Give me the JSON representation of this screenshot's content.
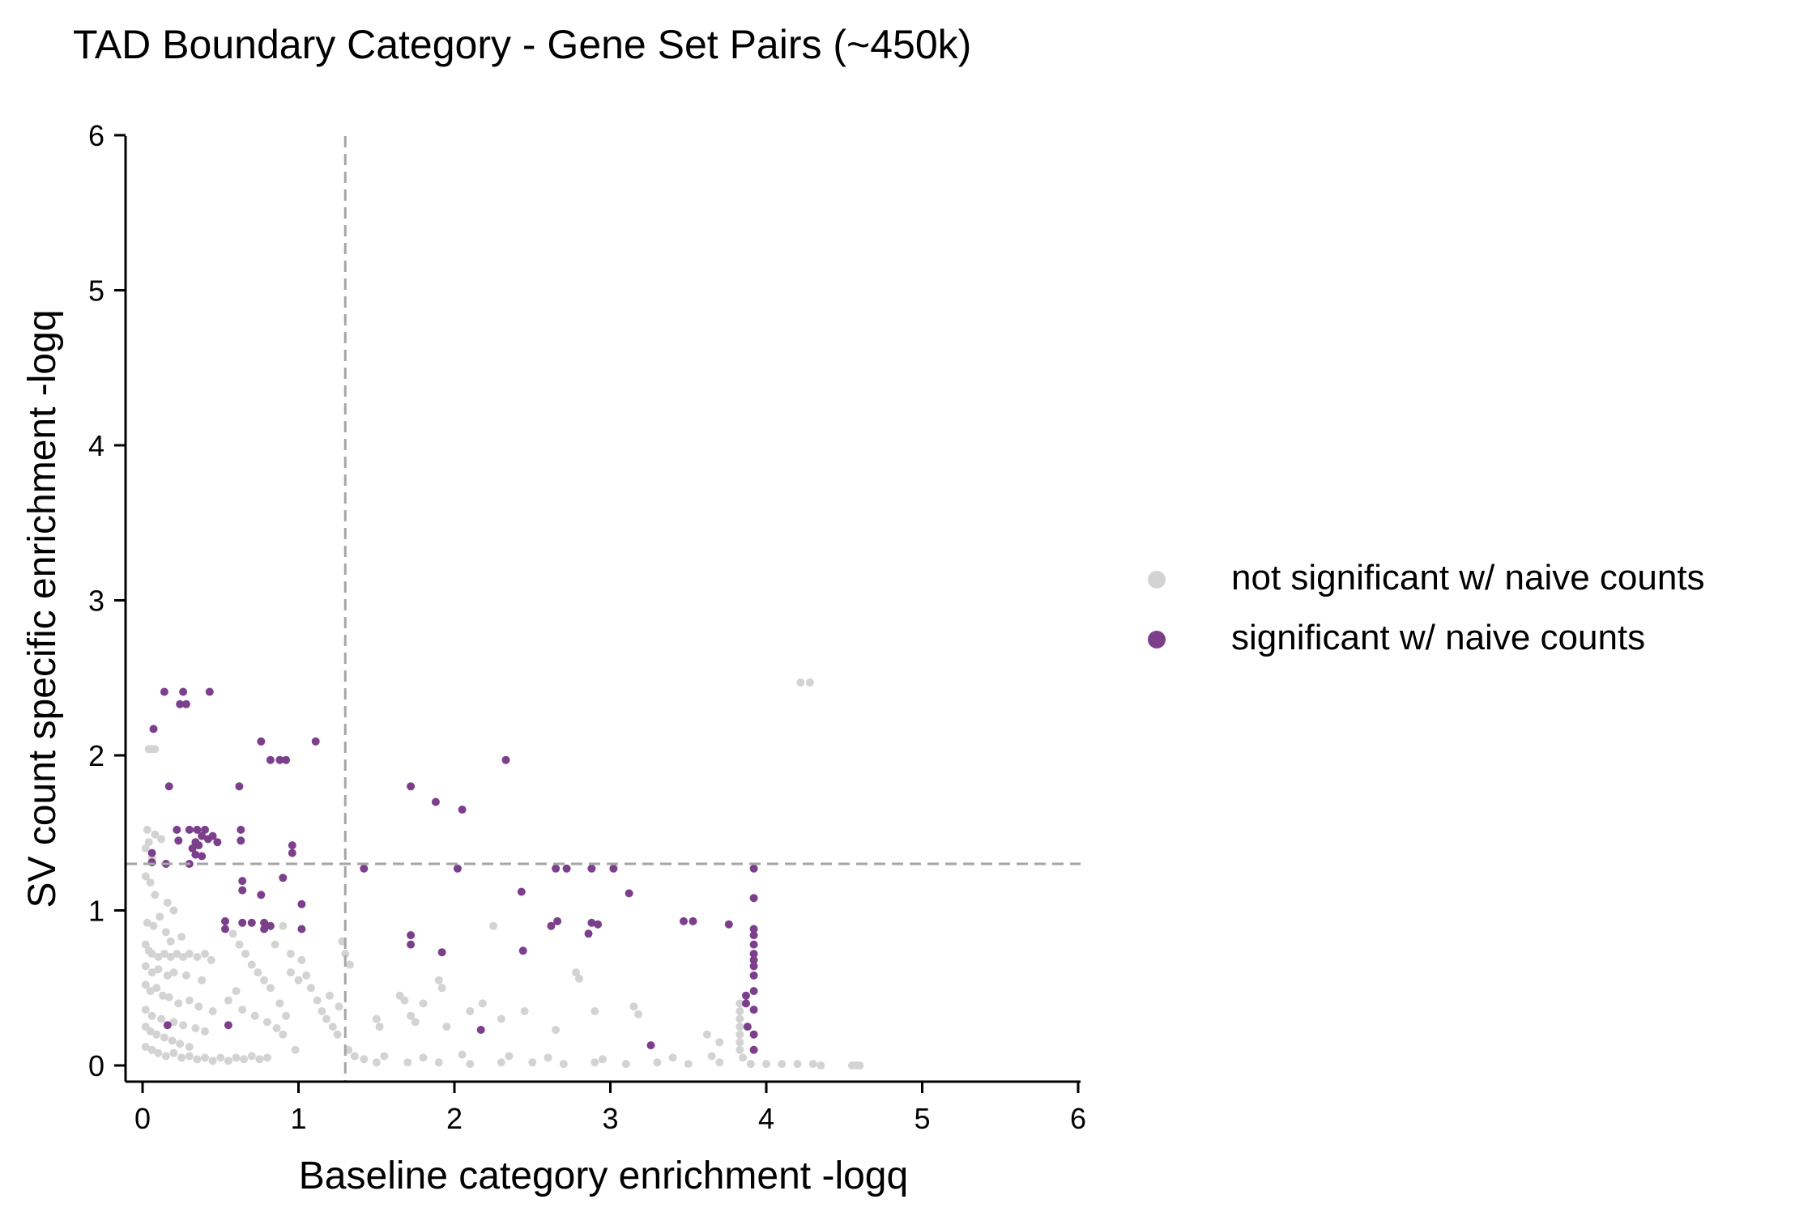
{
  "chart_data": {
    "type": "scatter",
    "title": "TAD Boundary Category - Gene Set Pairs (~450k)",
    "xlabel": "Baseline category enrichment -logq",
    "ylabel": "SV count specific enrichment -logq",
    "xlim": [
      -0.1,
      6
    ],
    "ylim": [
      -0.1,
      6
    ],
    "xticks": [
      0,
      1,
      2,
      3,
      4,
      5,
      6
    ],
    "yticks": [
      0,
      1,
      2,
      3,
      4,
      5,
      6
    ],
    "grid": false,
    "legend_position": "right",
    "reference_lines": [
      {
        "orientation": "vertical",
        "value": 1.3,
        "style": "dashed",
        "color": "#a6a6a6"
      },
      {
        "orientation": "horizontal",
        "value": 1.3,
        "style": "dashed",
        "color": "#a6a6a6"
      }
    ],
    "series": [
      {
        "name": "not significant w/ naive counts",
        "color": "#d3d3d3",
        "points": [
          [
            0.04,
            2.04
          ],
          [
            0.06,
            2.04
          ],
          [
            0.08,
            2.04
          ],
          [
            0.03,
            1.52
          ],
          [
            0.08,
            1.49
          ],
          [
            0.12,
            1.46
          ],
          [
            0.04,
            1.44
          ],
          [
            0.02,
            1.4
          ],
          [
            0.06,
            1.34
          ],
          [
            0.02,
            1.22
          ],
          [
            0.05,
            1.18
          ],
          [
            0.08,
            1.1
          ],
          [
            0.16,
            1.05
          ],
          [
            0.2,
            1.0
          ],
          [
            0.11,
            0.96
          ],
          [
            0.03,
            0.92
          ],
          [
            0.07,
            0.9
          ],
          [
            0.15,
            0.86
          ],
          [
            0.25,
            0.83
          ],
          [
            0.18,
            0.8
          ],
          [
            0.02,
            0.78
          ],
          [
            0.04,
            0.74
          ],
          [
            0.06,
            0.72
          ],
          [
            0.1,
            0.7
          ],
          [
            0.14,
            0.72
          ],
          [
            0.18,
            0.7
          ],
          [
            0.22,
            0.72
          ],
          [
            0.26,
            0.7
          ],
          [
            0.3,
            0.72
          ],
          [
            0.35,
            0.7
          ],
          [
            0.4,
            0.72
          ],
          [
            0.44,
            0.68
          ],
          [
            0.02,
            0.64
          ],
          [
            0.06,
            0.6
          ],
          [
            0.1,
            0.62
          ],
          [
            0.16,
            0.58
          ],
          [
            0.2,
            0.6
          ],
          [
            0.28,
            0.58
          ],
          [
            0.38,
            0.55
          ],
          [
            0.02,
            0.52
          ],
          [
            0.05,
            0.48
          ],
          [
            0.09,
            0.5
          ],
          [
            0.13,
            0.45
          ],
          [
            0.17,
            0.44
          ],
          [
            0.23,
            0.4
          ],
          [
            0.3,
            0.42
          ],
          [
            0.36,
            0.38
          ],
          [
            0.45,
            0.35
          ],
          [
            0.02,
            0.36
          ],
          [
            0.06,
            0.32
          ],
          [
            0.12,
            0.3
          ],
          [
            0.2,
            0.28
          ],
          [
            0.26,
            0.26
          ],
          [
            0.34,
            0.24
          ],
          [
            0.4,
            0.22
          ],
          [
            0.02,
            0.25
          ],
          [
            0.05,
            0.22
          ],
          [
            0.09,
            0.2
          ],
          [
            0.14,
            0.18
          ],
          [
            0.19,
            0.16
          ],
          [
            0.24,
            0.14
          ],
          [
            0.3,
            0.12
          ],
          [
            0.02,
            0.12
          ],
          [
            0.06,
            0.1
          ],
          [
            0.1,
            0.08
          ],
          [
            0.15,
            0.06
          ],
          [
            0.2,
            0.08
          ],
          [
            0.25,
            0.05
          ],
          [
            0.3,
            0.06
          ],
          [
            0.35,
            0.04
          ],
          [
            0.4,
            0.05
          ],
          [
            0.45,
            0.03
          ],
          [
            0.5,
            0.05
          ],
          [
            0.55,
            0.03
          ],
          [
            0.6,
            0.05
          ],
          [
            0.65,
            0.04
          ],
          [
            0.7,
            0.06
          ],
          [
            0.75,
            0.04
          ],
          [
            0.8,
            0.05
          ],
          [
            0.58,
            0.85
          ],
          [
            0.62,
            0.78
          ],
          [
            0.66,
            0.72
          ],
          [
            0.7,
            0.65
          ],
          [
            0.74,
            0.6
          ],
          [
            0.78,
            0.55
          ],
          [
            0.82,
            0.5
          ],
          [
            0.6,
            0.48
          ],
          [
            0.55,
            0.42
          ],
          [
            0.64,
            0.36
          ],
          [
            0.72,
            0.32
          ],
          [
            0.8,
            0.28
          ],
          [
            0.86,
            0.24
          ],
          [
            0.9,
            0.2
          ],
          [
            0.95,
            0.6
          ],
          [
            1.0,
            0.55
          ],
          [
            1.05,
            0.58
          ],
          [
            1.08,
            0.5
          ],
          [
            1.12,
            0.42
          ],
          [
            1.15,
            0.35
          ],
          [
            1.18,
            0.3
          ],
          [
            1.22,
            0.25
          ],
          [
            1.25,
            0.2
          ],
          [
            1.2,
            0.45
          ],
          [
            1.26,
            0.38
          ],
          [
            1.28,
            0.8
          ],
          [
            1.3,
            0.72
          ],
          [
            1.33,
            0.65
          ],
          [
            1.32,
            0.1
          ],
          [
            1.36,
            0.06
          ],
          [
            1.42,
            0.04
          ],
          [
            0.9,
            0.9
          ],
          [
            0.85,
            0.78
          ],
          [
            0.95,
            0.72
          ],
          [
            1.02,
            0.68
          ],
          [
            0.88,
            0.4
          ],
          [
            0.92,
            0.32
          ],
          [
            0.98,
            0.1
          ],
          [
            1.5,
            0.3
          ],
          [
            1.52,
            0.25
          ],
          [
            1.65,
            0.45
          ],
          [
            1.68,
            0.42
          ],
          [
            1.72,
            0.32
          ],
          [
            1.75,
            0.28
          ],
          [
            1.8,
            0.4
          ],
          [
            1.9,
            0.55
          ],
          [
            1.92,
            0.5
          ],
          [
            1.95,
            0.25
          ],
          [
            2.1,
            0.35
          ],
          [
            2.18,
            0.4
          ],
          [
            2.25,
            0.9
          ],
          [
            2.3,
            0.3
          ],
          [
            2.45,
            0.35
          ],
          [
            2.65,
            0.23
          ],
          [
            2.78,
            0.6
          ],
          [
            2.8,
            0.56
          ],
          [
            2.9,
            0.35
          ],
          [
            3.15,
            0.38
          ],
          [
            3.18,
            0.33
          ],
          [
            3.62,
            0.2
          ],
          [
            3.7,
            0.15
          ],
          [
            3.83,
            0.4
          ],
          [
            3.83,
            0.35
          ],
          [
            3.83,
            0.3
          ],
          [
            3.83,
            0.25
          ],
          [
            3.83,
            0.2
          ],
          [
            3.83,
            0.15
          ],
          [
            3.83,
            0.1
          ],
          [
            3.85,
            0.05
          ],
          [
            1.5,
            0.02
          ],
          [
            1.7,
            0.02
          ],
          [
            1.9,
            0.02
          ],
          [
            2.1,
            0.01
          ],
          [
            2.3,
            0.02
          ],
          [
            2.5,
            0.02
          ],
          [
            2.7,
            0.01
          ],
          [
            2.9,
            0.02
          ],
          [
            3.1,
            0.01
          ],
          [
            3.3,
            0.02
          ],
          [
            3.5,
            0.01
          ],
          [
            3.7,
            0.02
          ],
          [
            3.9,
            0.01
          ],
          [
            4.0,
            0.01
          ],
          [
            4.1,
            0.01
          ],
          [
            4.2,
            0.01
          ],
          [
            4.3,
            0.01
          ],
          [
            4.35,
            0.0
          ],
          [
            4.55,
            0.0
          ],
          [
            4.58,
            0.0
          ],
          [
            4.6,
            0.0
          ],
          [
            1.55,
            0.06
          ],
          [
            1.8,
            0.05
          ],
          [
            2.05,
            0.07
          ],
          [
            2.35,
            0.06
          ],
          [
            2.6,
            0.05
          ],
          [
            2.95,
            0.04
          ],
          [
            3.4,
            0.05
          ],
          [
            3.65,
            0.06
          ],
          [
            4.22,
            2.47
          ],
          [
            4.28,
            2.47
          ]
        ]
      },
      {
        "name": "significant w/ naive counts",
        "color": "#7b3f8c",
        "points": [
          [
            0.14,
            2.41
          ],
          [
            0.26,
            2.41
          ],
          [
            0.43,
            2.41
          ],
          [
            0.24,
            2.33
          ],
          [
            0.28,
            2.33
          ],
          [
            0.07,
            2.17
          ],
          [
            0.76,
            2.09
          ],
          [
            1.11,
            2.09
          ],
          [
            0.82,
            1.97
          ],
          [
            0.88,
            1.97
          ],
          [
            0.92,
            1.97
          ],
          [
            2.33,
            1.97
          ],
          [
            0.17,
            1.8
          ],
          [
            0.62,
            1.8
          ],
          [
            1.72,
            1.8
          ],
          [
            1.88,
            1.7
          ],
          [
            2.05,
            1.65
          ],
          [
            0.22,
            1.52
          ],
          [
            0.3,
            1.52
          ],
          [
            0.35,
            1.52
          ],
          [
            0.4,
            1.52
          ],
          [
            0.45,
            1.48
          ],
          [
            0.63,
            1.52
          ],
          [
            0.38,
            1.48
          ],
          [
            0.42,
            1.46
          ],
          [
            0.23,
            1.45
          ],
          [
            0.34,
            1.44
          ],
          [
            0.48,
            1.44
          ],
          [
            0.63,
            1.45
          ],
          [
            0.36,
            1.42
          ],
          [
            0.32,
            1.4
          ],
          [
            0.96,
            1.42
          ],
          [
            0.96,
            1.37
          ],
          [
            0.34,
            1.36
          ],
          [
            0.38,
            1.35
          ],
          [
            0.06,
            1.37
          ],
          [
            0.06,
            1.31
          ],
          [
            0.15,
            1.3
          ],
          [
            0.3,
            1.3
          ],
          [
            1.42,
            1.27
          ],
          [
            2.02,
            1.27
          ],
          [
            2.65,
            1.27
          ],
          [
            2.72,
            1.27
          ],
          [
            2.88,
            1.27
          ],
          [
            3.02,
            1.27
          ],
          [
            3.92,
            1.27
          ],
          [
            0.9,
            1.21
          ],
          [
            0.64,
            1.19
          ],
          [
            0.64,
            1.13
          ],
          [
            2.43,
            1.12
          ],
          [
            3.12,
            1.11
          ],
          [
            0.76,
            1.1
          ],
          [
            3.92,
            1.08
          ],
          [
            1.02,
            1.04
          ],
          [
            0.53,
            0.93
          ],
          [
            0.64,
            0.92
          ],
          [
            0.7,
            0.92
          ],
          [
            0.78,
            0.92
          ],
          [
            0.82,
            0.9
          ],
          [
            3.47,
            0.93
          ],
          [
            3.53,
            0.93
          ],
          [
            3.76,
            0.91
          ],
          [
            2.66,
            0.93
          ],
          [
            2.88,
            0.92
          ],
          [
            2.92,
            0.91
          ],
          [
            2.62,
            0.9
          ],
          [
            0.53,
            0.88
          ],
          [
            0.78,
            0.88
          ],
          [
            1.02,
            0.88
          ],
          [
            3.92,
            0.88
          ],
          [
            1.72,
            0.84
          ],
          [
            2.86,
            0.85
          ],
          [
            3.92,
            0.84
          ],
          [
            3.92,
            0.78
          ],
          [
            1.72,
            0.78
          ],
          [
            3.92,
            0.72
          ],
          [
            1.92,
            0.73
          ],
          [
            2.44,
            0.74
          ],
          [
            3.92,
            0.68
          ],
          [
            3.92,
            0.64
          ],
          [
            3.92,
            0.58
          ],
          [
            3.92,
            0.48
          ],
          [
            3.87,
            0.45
          ],
          [
            3.87,
            0.4
          ],
          [
            3.92,
            0.36
          ],
          [
            3.88,
            0.25
          ],
          [
            0.55,
            0.26
          ],
          [
            0.16,
            0.26
          ],
          [
            2.17,
            0.23
          ],
          [
            3.92,
            0.2
          ],
          [
            3.92,
            0.1
          ],
          [
            3.26,
            0.13
          ]
        ]
      }
    ]
  }
}
